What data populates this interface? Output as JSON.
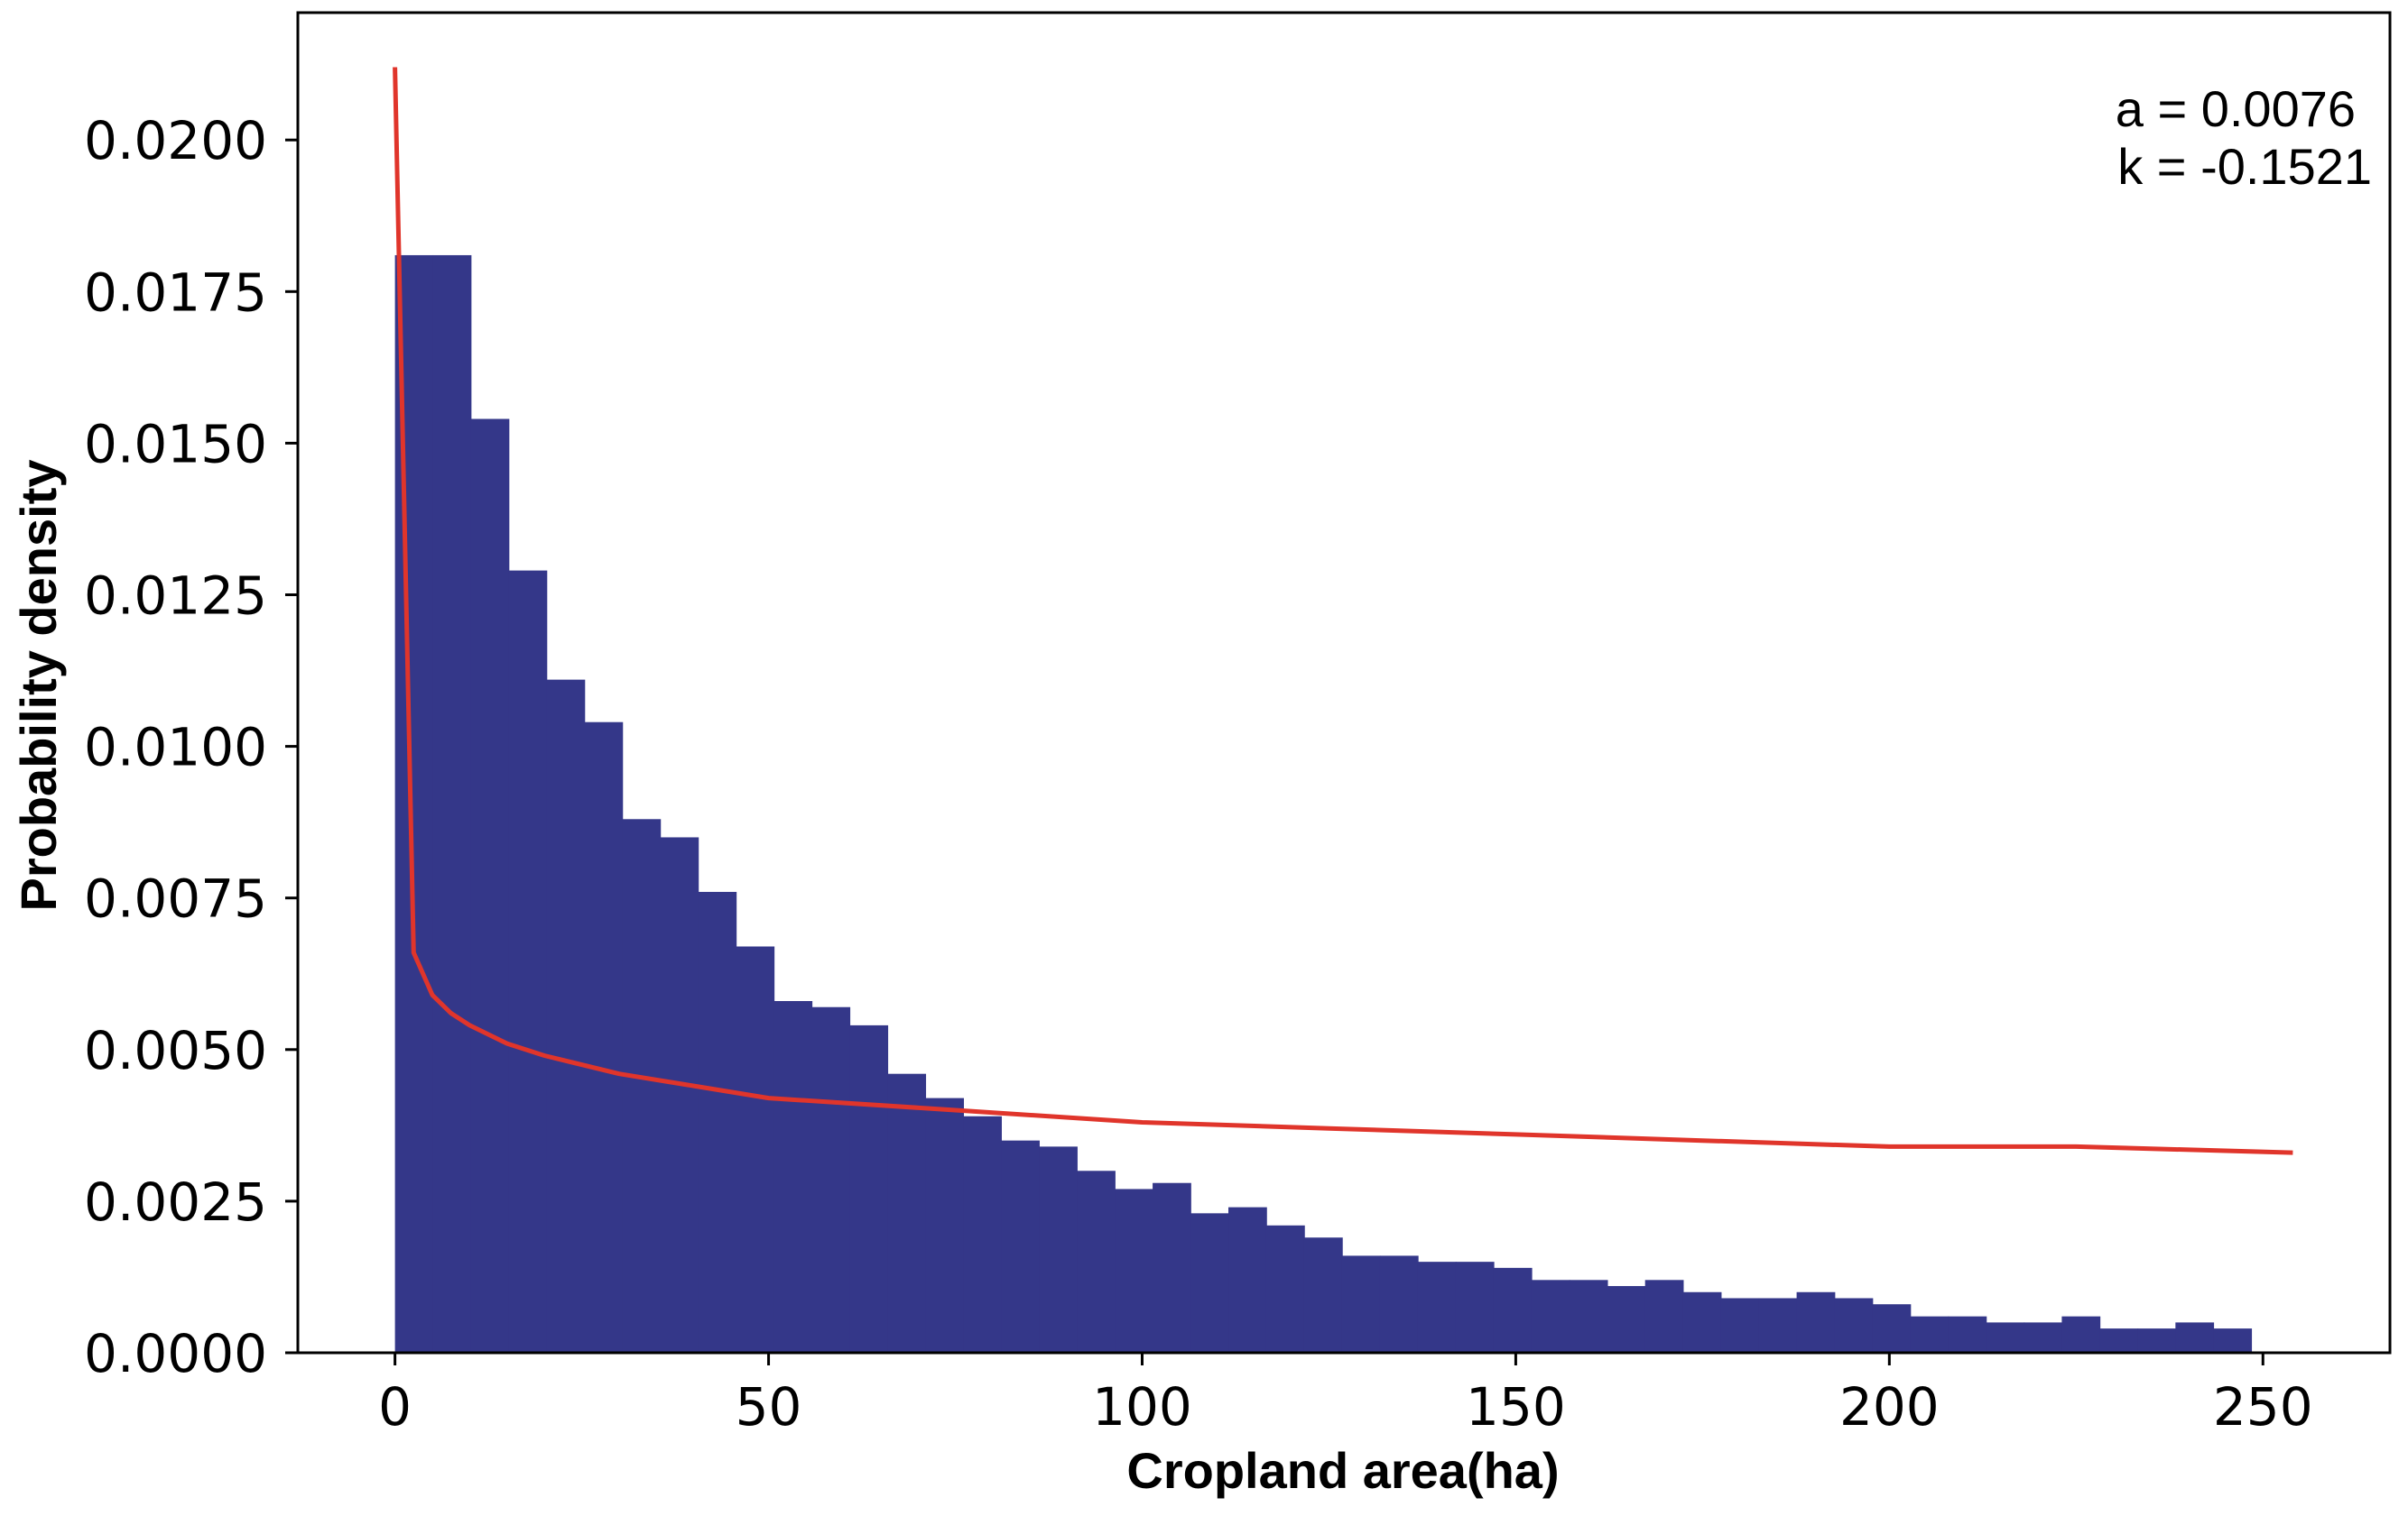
{
  "chart_data": {
    "type": "bar",
    "subtype": "histogram-with-fit-curve",
    "xlabel": "Cropland area(ha)",
    "ylabel": "Probability density",
    "xlim": [
      -13,
      267
    ],
    "ylim": [
      0,
      0.0221
    ],
    "grid": false,
    "x_ticks": [
      0,
      50,
      100,
      150,
      200,
      250
    ],
    "x_tick_labels": [
      "0",
      "50",
      "100",
      "150",
      "200",
      "250"
    ],
    "y_ticks": [
      0,
      0.0025,
      0.005,
      0.0075,
      0.01,
      0.0125,
      0.015,
      0.0175,
      0.02
    ],
    "y_tick_labels": [
      "0.0000",
      "0.0025",
      "0.0050",
      "0.0075",
      "0.0100",
      "0.0125",
      "0.0150",
      "0.0175",
      "0.0200"
    ],
    "annotations": [
      "a = 0.0076",
      "k = -0.1521"
    ],
    "colors": {
      "bars": "#343789",
      "fit": "#e0352b",
      "axes": "#000000"
    },
    "bins": {
      "start": 0,
      "width": 5.07,
      "values": [
        0.0181,
        0.0181,
        0.0154,
        0.0129,
        0.0111,
        0.0104,
        0.0088,
        0.0085,
        0.0076,
        0.0067,
        0.0058,
        0.0057,
        0.0054,
        0.0046,
        0.0042,
        0.0039,
        0.0035,
        0.0034,
        0.003,
        0.0027,
        0.0028,
        0.0023,
        0.0024,
        0.0021,
        0.0019,
        0.0016,
        0.0016,
        0.0015,
        0.0015,
        0.0014,
        0.0012,
        0.0012,
        0.0011,
        0.0012,
        0.001,
        0.0009,
        0.0009,
        0.001,
        0.0009,
        0.0008,
        0.0006,
        0.0006,
        0.0005,
        0.0005,
        0.0006,
        0.0004,
        0.0004,
        0.0005,
        0.0004
      ]
    },
    "series": [
      {
        "x": [
          0,
          2.5,
          5,
          7.5,
          10,
          15,
          20,
          30,
          40,
          50,
          75,
          100,
          125,
          150,
          175,
          200,
          225,
          254
        ],
        "values": [
          0.0212,
          0.0066,
          0.0059,
          0.0056,
          0.0054,
          0.0051,
          0.0049,
          0.0046,
          0.0044,
          0.0042,
          0.004,
          0.0038,
          0.0037,
          0.0036,
          0.0035,
          0.0034,
          0.0034,
          0.0033
        ]
      }
    ]
  }
}
